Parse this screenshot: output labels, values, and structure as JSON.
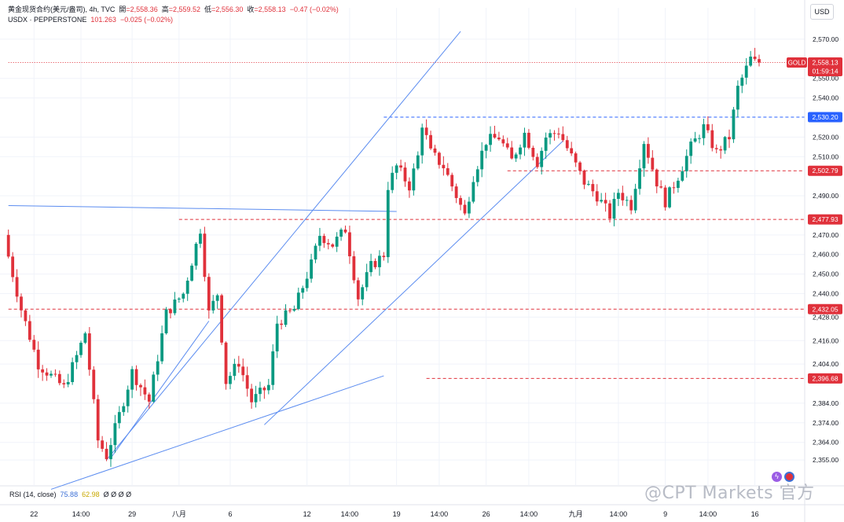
{
  "header": {
    "symbol": "黄金现货合约(美元/盎司)",
    "interval": "4h",
    "source": "TVC",
    "open_label": "開",
    "open": "=2,558.36",
    "high_label": "高",
    "high": "=2,559.52",
    "low_label": "低",
    "low": "=2,556.30",
    "close_label": "收",
    "close": "=2,558.13",
    "change": "−0.47 (−0.02%)"
  },
  "overlay": {
    "symbol": "USDX · PEPPERSTONE",
    "value": "101.263",
    "change": "−0.025 (−0.02%)"
  },
  "currency_button": "USD",
  "rsi_pane": {
    "label": "RSI (14, close)",
    "value_1": "75.88",
    "value_2": "62.98",
    "zeros": "Ø Ø Ø Ø"
  },
  "watermark": "@CPT Markets 官方",
  "colors": {
    "up": "#089981",
    "down": "#e0313b",
    "trendline": "#5b8cf0",
    "level_red": "#e0313b",
    "level_blue": "#2962ff",
    "grid": "#f0f3fa"
  },
  "chart_data": {
    "type": "candlestick",
    "y_axis": {
      "range": [
        2345,
        2578
      ],
      "ticks": [
        {
          "v": 2570,
          "label": "2,570.00"
        },
        {
          "v": 2550,
          "label": "2,550.00"
        },
        {
          "v": 2540,
          "label": "2,540.00"
        },
        {
          "v": 2520,
          "label": "2,520.00"
        },
        {
          "v": 2510,
          "label": "2,510.00"
        },
        {
          "v": 2490,
          "label": "2,490.00"
        },
        {
          "v": 2470,
          "label": "2,470.00"
        },
        {
          "v": 2460,
          "label": "2,460.00"
        },
        {
          "v": 2450,
          "label": "2,450.00"
        },
        {
          "v": 2440,
          "label": "2,440.00"
        },
        {
          "v": 2428,
          "label": "2,428.00"
        },
        {
          "v": 2416,
          "label": "2,416.00"
        },
        {
          "v": 2404,
          "label": "2,404.00"
        },
        {
          "v": 2384,
          "label": "2,384.00"
        },
        {
          "v": 2374,
          "label": "2,374.00"
        },
        {
          "v": 2364,
          "label": "2,364.00"
        },
        {
          "v": 2355,
          "label": "2,355.00"
        }
      ]
    },
    "x_axis": {
      "bars": 180,
      "ticks": [
        {
          "bar": 6,
          "label": "22"
        },
        {
          "bar": 17,
          "label": "14:00"
        },
        {
          "bar": 29,
          "label": "29"
        },
        {
          "bar": 40,
          "label": "八月"
        },
        {
          "bar": 52,
          "label": "6"
        },
        {
          "bar": 70,
          "label": "12"
        },
        {
          "bar": 80,
          "label": "14:00"
        },
        {
          "bar": 91,
          "label": "19"
        },
        {
          "bar": 101,
          "label": "14:00"
        },
        {
          "bar": 112,
          "label": "26"
        },
        {
          "bar": 122,
          "label": "14:00"
        },
        {
          "bar": 133,
          "label": "九月"
        },
        {
          "bar": 143,
          "label": "14:00"
        },
        {
          "bar": 154,
          "label": "9"
        },
        {
          "bar": 164,
          "label": "14:00"
        },
        {
          "bar": 175,
          "label": "16"
        }
      ]
    },
    "path": [
      [
        0,
        2468
      ],
      [
        4,
        2432
      ],
      [
        8,
        2404
      ],
      [
        10,
        2400
      ],
      [
        14,
        2392
      ],
      [
        17,
        2408
      ],
      [
        19,
        2420
      ],
      [
        22,
        2365
      ],
      [
        24,
        2357
      ],
      [
        27,
        2378
      ],
      [
        30,
        2400
      ],
      [
        34,
        2385
      ],
      [
        38,
        2430
      ],
      [
        42,
        2440
      ],
      [
        46,
        2473
      ],
      [
        48,
        2430
      ],
      [
        50,
        2440
      ],
      [
        52,
        2395
      ],
      [
        55,
        2405
      ],
      [
        58,
        2385
      ],
      [
        62,
        2393
      ],
      [
        64,
        2425
      ],
      [
        68,
        2432
      ],
      [
        72,
        2455
      ],
      [
        74,
        2470
      ],
      [
        77,
        2465
      ],
      [
        80,
        2473
      ],
      [
        83,
        2438
      ],
      [
        86,
        2454
      ],
      [
        89,
        2460
      ],
      [
        90,
        2495
      ],
      [
        92,
        2505
      ],
      [
        95,
        2495
      ],
      [
        97,
        2510
      ],
      [
        98,
        2527
      ],
      [
        100,
        2512
      ],
      [
        103,
        2505
      ],
      [
        106,
        2490
      ],
      [
        108,
        2480
      ],
      [
        110,
        2500
      ],
      [
        113,
        2518
      ],
      [
        116,
        2520
      ],
      [
        119,
        2508
      ],
      [
        122,
        2522
      ],
      [
        125,
        2507
      ],
      [
        127,
        2520
      ],
      [
        130,
        2523
      ],
      [
        133,
        2510
      ],
      [
        136,
        2497
      ],
      [
        139,
        2490
      ],
      [
        142,
        2480
      ],
      [
        144,
        2492
      ],
      [
        147,
        2485
      ],
      [
        150,
        2518
      ],
      [
        153,
        2497
      ],
      [
        155,
        2487
      ],
      [
        158,
        2500
      ],
      [
        161,
        2515
      ],
      [
        164,
        2525
      ],
      [
        167,
        2512
      ],
      [
        170,
        2520
      ],
      [
        172,
        2545
      ],
      [
        175,
        2560
      ],
      [
        176,
        2558.13
      ]
    ],
    "trendlines": [
      {
        "from": [
          0,
          2485
        ],
        "to": [
          91,
          2482
        ]
      },
      {
        "from": [
          10,
          2340
        ],
        "to": [
          88,
          2398
        ]
      },
      {
        "from": [
          23,
          2355
        ],
        "to": [
          106,
          2574
        ]
      },
      {
        "from": [
          24,
          2356
        ],
        "to": [
          47,
          2426
        ]
      },
      {
        "from": [
          60,
          2373
        ],
        "to": [
          130,
          2518
        ]
      }
    ],
    "horizontal_levels": [
      {
        "value": 2558.13,
        "from_bar": 0,
        "color": "red",
        "label": "2,558.13",
        "tag": "GOLD",
        "countdown": "01:59:14",
        "style": "dotted"
      },
      {
        "value": 2530.2,
        "from_bar": 88,
        "color": "blue",
        "label": "2,530.20",
        "style": "dashed"
      },
      {
        "value": 2502.79,
        "from_bar": 117,
        "color": "red",
        "label": "2,502.79",
        "style": "dashed"
      },
      {
        "value": 2477.93,
        "from_bar": 40,
        "color": "red",
        "label": "2,477.93",
        "style": "dashed"
      },
      {
        "value": 2432.05,
        "from_bar": 0,
        "color": "red",
        "label": "2,432.05",
        "style": "dashed"
      },
      {
        "value": 2396.68,
        "from_bar": 98,
        "color": "red",
        "label": "2,396.68",
        "style": "dashed"
      }
    ]
  }
}
